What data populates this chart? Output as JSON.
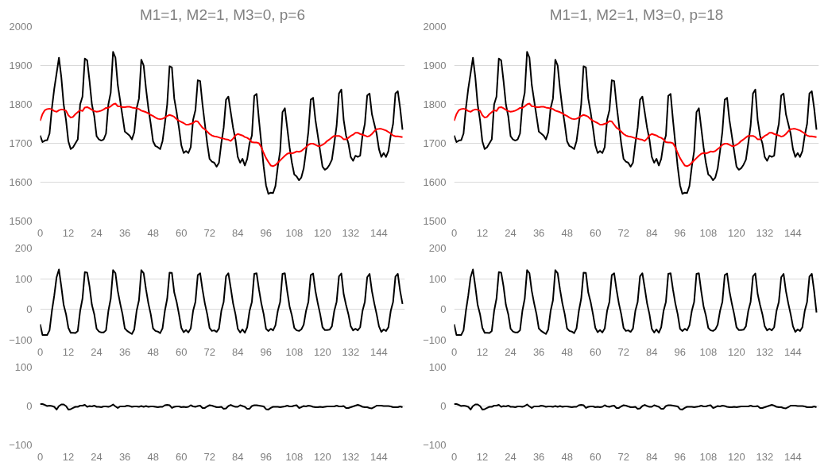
{
  "chart_data": [
    {
      "type": "line",
      "title": "M1=1, M2=1, M3=0, p=6",
      "xlim": [
        0,
        155
      ],
      "xticks": [
        0,
        12,
        24,
        36,
        48,
        60,
        72,
        84,
        96,
        108,
        120,
        132,
        144
      ],
      "ylim": [
        1500,
        2000
      ],
      "yticks": [
        1500,
        1600,
        1700,
        1800,
        1900,
        2000
      ],
      "grid": "y",
      "x": [
        0,
        1,
        2,
        3,
        4,
        5,
        6,
        7,
        8,
        9,
        10,
        11,
        12,
        13,
        14,
        15,
        16,
        17,
        18,
        19,
        20,
        21,
        22,
        23,
        24,
        25,
        26,
        27,
        28,
        29,
        30,
        31,
        32,
        33,
        34,
        35,
        36,
        37,
        38,
        39,
        40,
        41,
        42,
        43,
        44,
        45,
        46,
        47,
        48,
        49,
        50,
        51,
        52,
        53,
        54,
        55,
        56,
        57,
        58,
        59,
        60,
        61,
        62,
        63,
        64,
        65,
        66,
        67,
        68,
        69,
        70,
        71,
        72,
        73,
        74,
        75,
        76,
        77,
        78,
        79,
        80,
        81,
        82,
        83,
        84,
        85,
        86,
        87,
        88,
        89,
        90,
        91,
        92,
        93,
        94,
        95,
        96,
        97,
        98,
        99,
        100,
        101,
        102,
        103,
        104,
        105,
        106,
        107,
        108,
        109,
        110,
        111,
        112,
        113,
        114,
        115,
        116,
        117,
        118,
        119,
        120,
        121,
        122,
        123,
        124,
        125,
        126,
        127,
        128,
        129,
        130,
        131,
        132,
        133,
        134,
        135,
        136,
        137,
        138,
        139,
        140,
        141,
        142,
        143,
        144,
        145,
        146,
        147,
        148,
        149,
        150,
        151,
        152,
        153,
        154
      ],
      "series": [
        {
          "color": "#000000",
          "values": [
            1720,
            1703,
            1707,
            1708,
            1725,
            1790,
            1840,
            1880,
            1920,
            1870,
            1800,
            1760,
            1705,
            1685,
            1690,
            1700,
            1710,
            1800,
            1820,
            1918,
            1913,
            1860,
            1800,
            1770,
            1718,
            1710,
            1707,
            1710,
            1725,
            1800,
            1830,
            1935,
            1920,
            1850,
            1810,
            1770,
            1730,
            1725,
            1720,
            1710,
            1728,
            1790,
            1815,
            1915,
            1900,
            1840,
            1790,
            1750,
            1705,
            1693,
            1690,
            1685,
            1705,
            1750,
            1800,
            1898,
            1895,
            1815,
            1780,
            1740,
            1695,
            1675,
            1680,
            1675,
            1690,
            1760,
            1785,
            1862,
            1860,
            1800,
            1750,
            1700,
            1660,
            1653,
            1650,
            1640,
            1650,
            1700,
            1740,
            1812,
            1820,
            1780,
            1740,
            1710,
            1665,
            1650,
            1660,
            1643,
            1660,
            1700,
            1720,
            1822,
            1827,
            1760,
            1700,
            1640,
            1592,
            1570,
            1573,
            1572,
            1590,
            1640,
            1680,
            1780,
            1790,
            1740,
            1690,
            1650,
            1620,
            1615,
            1605,
            1612,
            1635,
            1680,
            1730,
            1812,
            1817,
            1760,
            1720,
            1680,
            1640,
            1632,
            1636,
            1645,
            1658,
            1700,
            1745,
            1828,
            1838,
            1760,
            1720,
            1700,
            1665,
            1655,
            1668,
            1665,
            1668,
            1720,
            1750,
            1823,
            1828,
            1775,
            1750,
            1725,
            1685,
            1665,
            1675,
            1665,
            1680,
            1720,
            1750,
            1828,
            1834,
            1790,
            1735
          ]
        },
        {
          "color": "#ff0000",
          "values": [
            1758,
            1775,
            1785,
            1788,
            1789,
            1787,
            1783,
            1781,
            1785,
            1787,
            1786,
            1784,
            1772,
            1766,
            1768,
            1775,
            1780,
            1785,
            1783,
            1792,
            1793,
            1790,
            1786,
            1783,
            1781,
            1782,
            1784,
            1787,
            1791,
            1791,
            1795,
            1800,
            1802,
            1795,
            1795,
            1793,
            1793,
            1794,
            1794,
            1792,
            1791,
            1790,
            1788,
            1784,
            1782,
            1780,
            1777,
            1773,
            1770,
            1766,
            1763,
            1762,
            1763,
            1766,
            1770,
            1773,
            1771,
            1768,
            1762,
            1758,
            1755,
            1752,
            1748,
            1748,
            1750,
            1752,
            1757,
            1756,
            1748,
            1740,
            1736,
            1730,
            1724,
            1720,
            1718,
            1717,
            1715,
            1713,
            1712,
            1710,
            1709,
            1706,
            1712,
            1720,
            1724,
            1722,
            1720,
            1716,
            1714,
            1710,
            1703,
            1702,
            1702,
            1700,
            1690,
            1675,
            1662,
            1652,
            1643,
            1641,
            1644,
            1650,
            1656,
            1662,
            1668,
            1673,
            1675,
            1674,
            1676,
            1679,
            1678,
            1680,
            1685,
            1690,
            1696,
            1699,
            1699,
            1696,
            1693,
            1693,
            1696,
            1700,
            1706,
            1710,
            1715,
            1719,
            1719,
            1719,
            1716,
            1710,
            1710,
            1714,
            1719,
            1722,
            1727,
            1727,
            1724,
            1722,
            1720,
            1717,
            1719,
            1724,
            1731,
            1736,
            1737,
            1737,
            1735,
            1733,
            1729,
            1725,
            1720,
            1718,
            1718,
            1717,
            1716
          ]
        }
      ]
    },
    {
      "type": "line",
      "title": "M1=1, M2=1, M3=0, p=18",
      "xlim": [
        0,
        155
      ],
      "xticks": [
        0,
        12,
        24,
        36,
        48,
        60,
        72,
        84,
        96,
        108,
        120,
        132,
        144
      ],
      "ylim": [
        1500,
        2000
      ],
      "yticks": [
        1500,
        1600,
        1700,
        1800,
        1900,
        2000
      ],
      "grid": "y",
      "x": [
        0,
        1,
        2,
        3,
        4,
        5,
        6,
        7,
        8,
        9,
        10,
        11,
        12,
        13,
        14,
        15,
        16,
        17,
        18,
        19,
        20,
        21,
        22,
        23,
        24,
        25,
        26,
        27,
        28,
        29,
        30,
        31,
        32,
        33,
        34,
        35,
        36,
        37,
        38,
        39,
        40,
        41,
        42,
        43,
        44,
        45,
        46,
        47,
        48,
        49,
        50,
        51,
        52,
        53,
        54,
        55,
        56,
        57,
        58,
        59,
        60,
        61,
        62,
        63,
        64,
        65,
        66,
        67,
        68,
        69,
        70,
        71,
        72,
        73,
        74,
        75,
        76,
        77,
        78,
        79,
        80,
        81,
        82,
        83,
        84,
        85,
        86,
        87,
        88,
        89,
        90,
        91,
        92,
        93,
        94,
        95,
        96,
        97,
        98,
        99,
        100,
        101,
        102,
        103,
        104,
        105,
        106,
        107,
        108,
        109,
        110,
        111,
        112,
        113,
        114,
        115,
        116,
        117,
        118,
        119,
        120,
        121,
        122,
        123,
        124,
        125,
        126,
        127,
        128,
        129,
        130,
        131,
        132,
        133,
        134,
        135,
        136,
        137,
        138,
        139,
        140,
        141,
        142,
        143,
        144,
        145,
        146,
        147,
        148,
        149,
        150,
        151,
        152,
        153,
        154
      ],
      "series": [
        {
          "color": "#000000",
          "values": [
            1720,
            1703,
            1707,
            1708,
            1725,
            1790,
            1840,
            1880,
            1920,
            1870,
            1800,
            1760,
            1705,
            1685,
            1690,
            1700,
            1710,
            1800,
            1820,
            1918,
            1913,
            1860,
            1800,
            1770,
            1718,
            1710,
            1707,
            1710,
            1725,
            1800,
            1830,
            1935,
            1920,
            1850,
            1810,
            1770,
            1730,
            1725,
            1720,
            1710,
            1728,
            1790,
            1815,
            1915,
            1900,
            1840,
            1790,
            1750,
            1705,
            1693,
            1690,
            1685,
            1705,
            1750,
            1800,
            1898,
            1895,
            1815,
            1780,
            1740,
            1695,
            1675,
            1680,
            1675,
            1690,
            1760,
            1785,
            1862,
            1860,
            1800,
            1750,
            1700,
            1660,
            1653,
            1650,
            1640,
            1650,
            1700,
            1740,
            1812,
            1820,
            1780,
            1740,
            1710,
            1665,
            1650,
            1660,
            1643,
            1660,
            1700,
            1720,
            1822,
            1827,
            1760,
            1700,
            1640,
            1592,
            1570,
            1573,
            1572,
            1590,
            1640,
            1680,
            1780,
            1790,
            1740,
            1690,
            1650,
            1620,
            1615,
            1605,
            1612,
            1635,
            1680,
            1730,
            1812,
            1817,
            1760,
            1720,
            1680,
            1640,
            1632,
            1636,
            1645,
            1658,
            1700,
            1745,
            1828,
            1838,
            1760,
            1720,
            1700,
            1665,
            1655,
            1668,
            1665,
            1668,
            1720,
            1750,
            1823,
            1828,
            1775,
            1750,
            1725,
            1685,
            1665,
            1675,
            1665,
            1680,
            1720,
            1750,
            1828,
            1834,
            1790,
            1735
          ]
        },
        {
          "color": "#ff0000",
          "values": [
            1758,
            1775,
            1785,
            1788,
            1789,
            1787,
            1783,
            1781,
            1785,
            1787,
            1786,
            1784,
            1772,
            1766,
            1768,
            1775,
            1780,
            1785,
            1783,
            1792,
            1793,
            1790,
            1786,
            1783,
            1781,
            1782,
            1784,
            1787,
            1791,
            1791,
            1795,
            1800,
            1802,
            1795,
            1795,
            1793,
            1793,
            1794,
            1794,
            1792,
            1791,
            1790,
            1788,
            1784,
            1782,
            1780,
            1777,
            1773,
            1770,
            1766,
            1763,
            1762,
            1763,
            1766,
            1770,
            1773,
            1771,
            1768,
            1762,
            1758,
            1755,
            1752,
            1748,
            1748,
            1750,
            1752,
            1757,
            1756,
            1748,
            1740,
            1736,
            1730,
            1724,
            1720,
            1718,
            1717,
            1715,
            1713,
            1712,
            1710,
            1709,
            1706,
            1712,
            1720,
            1724,
            1722,
            1720,
            1716,
            1714,
            1710,
            1703,
            1702,
            1702,
            1700,
            1690,
            1675,
            1662,
            1652,
            1643,
            1641,
            1644,
            1650,
            1656,
            1662,
            1668,
            1673,
            1675,
            1674,
            1676,
            1679,
            1678,
            1680,
            1685,
            1690,
            1696,
            1699,
            1699,
            1696,
            1693,
            1693,
            1696,
            1700,
            1706,
            1710,
            1715,
            1719,
            1719,
            1719,
            1716,
            1710,
            1710,
            1714,
            1719,
            1722,
            1727,
            1727,
            1724,
            1722,
            1720,
            1717,
            1719,
            1724,
            1731,
            1736,
            1737,
            1737,
            1735,
            1733,
            1729,
            1725,
            1720,
            1718,
            1718,
            1717,
            1716
          ]
        }
      ]
    },
    {
      "type": "line",
      "xlim": [
        0,
        155
      ],
      "xticks": [
        0,
        12,
        24,
        36,
        48,
        60,
        72,
        84,
        96,
        108,
        120,
        132,
        144
      ],
      "ylim": [
        -100,
        200
      ],
      "yticks": [
        -100,
        0,
        100,
        200
      ],
      "grid": "y",
      "x": [
        0,
        1,
        2,
        3,
        4,
        5,
        6,
        7,
        8,
        9,
        10,
        11,
        12,
        13,
        14,
        15,
        16,
        17,
        18,
        19,
        20,
        21,
        22,
        23,
        24,
        25,
        26,
        27,
        28,
        29,
        30,
        31,
        32,
        33,
        34,
        35,
        36,
        37,
        38,
        39,
        40,
        41,
        42,
        43,
        44,
        45,
        46,
        47,
        48,
        49,
        50,
        51,
        52,
        53,
        54,
        55,
        56,
        57,
        58,
        59,
        60,
        61,
        62,
        63,
        64,
        65,
        66,
        67,
        68,
        69,
        70,
        71,
        72,
        73,
        74,
        75,
        76,
        77,
        78,
        79,
        80,
        81,
        82,
        83,
        84,
        85,
        86,
        87,
        88,
        89,
        90,
        91,
        92,
        93,
        94,
        95,
        96,
        97,
        98,
        99,
        100,
        101,
        102,
        103,
        104,
        105,
        106,
        107,
        108,
        109,
        110,
        111,
        112,
        113,
        114,
        115,
        116,
        117,
        118,
        119,
        120,
        121,
        122,
        123,
        124,
        125,
        126,
        127,
        128,
        129,
        130,
        131,
        132,
        133,
        134,
        135,
        136,
        137,
        138,
        139,
        140,
        141,
        142,
        143,
        144,
        145,
        146,
        147,
        148,
        149,
        150,
        151,
        152,
        153,
        154
      ],
      "series": [
        {
          "color": "#000000",
          "values": [
            -48,
            -83,
            -83,
            -83,
            -68,
            -5,
            45,
            105,
            130,
            75,
            15,
            -15,
            -60,
            -76,
            -76,
            -77,
            -70,
            -5,
            35,
            122,
            120,
            75,
            15,
            -15,
            -63,
            -72,
            -75,
            -75,
            -68,
            -5,
            35,
            128,
            118,
            60,
            20,
            -15,
            -62,
            -70,
            -75,
            -80,
            -65,
            -5,
            30,
            128,
            118,
            65,
            20,
            -15,
            -62,
            -70,
            -72,
            -77,
            -62,
            -5,
            35,
            120,
            119,
            55,
            25,
            -15,
            -60,
            -74,
            -67,
            -75,
            -62,
            -5,
            25,
            112,
            118,
            65,
            20,
            -15,
            -60,
            -70,
            -68,
            -73,
            -62,
            -5,
            25,
            108,
            118,
            70,
            20,
            -15,
            -63,
            -75,
            -65,
            -76,
            -58,
            -5,
            25,
            116,
            118,
            65,
            20,
            -15,
            -63,
            -70,
            -63,
            -68,
            -52,
            -5,
            25,
            116,
            118,
            60,
            10,
            -20,
            -60,
            -68,
            -70,
            -65,
            -50,
            -5,
            25,
            112,
            117,
            60,
            20,
            -15,
            -58,
            -67,
            -67,
            -66,
            -55,
            -5,
            25,
            108,
            117,
            50,
            15,
            -15,
            -55,
            -68,
            -63,
            -68,
            -58,
            -5,
            25,
            105,
            116,
            60,
            20,
            -15,
            -55,
            -73,
            -65,
            -70,
            -58,
            -5,
            25,
            107,
            116,
            60,
            18
          ]
        }
      ]
    },
    {
      "type": "line",
      "xlim": [
        0,
        155
      ],
      "xticks": [
        0,
        12,
        24,
        36,
        48,
        60,
        72,
        84,
        96,
        108,
        120,
        132,
        144
      ],
      "ylim": [
        -100,
        200
      ],
      "yticks": [
        -100,
        0,
        100,
        200
      ],
      "grid": "y",
      "x": [
        0,
        1,
        2,
        3,
        4,
        5,
        6,
        7,
        8,
        9,
        10,
        11,
        12,
        13,
        14,
        15,
        16,
        17,
        18,
        19,
        20,
        21,
        22,
        23,
        24,
        25,
        26,
        27,
        28,
        29,
        30,
        31,
        32,
        33,
        34,
        35,
        36,
        37,
        38,
        39,
        40,
        41,
        42,
        43,
        44,
        45,
        46,
        47,
        48,
        49,
        50,
        51,
        52,
        53,
        54,
        55,
        56,
        57,
        58,
        59,
        60,
        61,
        62,
        63,
        64,
        65,
        66,
        67,
        68,
        69,
        70,
        71,
        72,
        73,
        74,
        75,
        76,
        77,
        78,
        79,
        80,
        81,
        82,
        83,
        84,
        85,
        86,
        87,
        88,
        89,
        90,
        91,
        92,
        93,
        94,
        95,
        96,
        97,
        98,
        99,
        100,
        101,
        102,
        103,
        104,
        105,
        106,
        107,
        108,
        109,
        110,
        111,
        112,
        113,
        114,
        115,
        116,
        117,
        118,
        119,
        120,
        121,
        122,
        123,
        124,
        125,
        126,
        127,
        128,
        129,
        130,
        131,
        132,
        133,
        134,
        135,
        136,
        137,
        138,
        139,
        140,
        141,
        142,
        143,
        144,
        145,
        146,
        147,
        148,
        149,
        150,
        151,
        152,
        153,
        154
      ],
      "series": [
        {
          "color": "#000000",
          "values": [
            -48,
            -83,
            -83,
            -83,
            -68,
            -5,
            45,
            105,
            130,
            75,
            15,
            -15,
            -60,
            -76,
            -76,
            -77,
            -70,
            -5,
            35,
            122,
            120,
            75,
            15,
            -15,
            -63,
            -72,
            -75,
            -75,
            -68,
            -5,
            35,
            128,
            118,
            60,
            20,
            -15,
            -62,
            -70,
            -75,
            -80,
            -65,
            -5,
            30,
            128,
            118,
            65,
            20,
            -15,
            -62,
            -70,
            -72,
            -77,
            -62,
            -5,
            35,
            120,
            119,
            55,
            25,
            -15,
            -60,
            -74,
            -67,
            -75,
            -62,
            -5,
            25,
            112,
            118,
            65,
            20,
            -15,
            -60,
            -70,
            -68,
            -73,
            -62,
            -5,
            25,
            108,
            118,
            70,
            20,
            -15,
            -63,
            -75,
            -65,
            -76,
            -58,
            -5,
            25,
            116,
            118,
            65,
            20,
            -15,
            -63,
            -70,
            -63,
            -68,
            -52,
            -5,
            25,
            116,
            118,
            60,
            10,
            -20,
            -60,
            -68,
            -70,
            -65,
            -50,
            -5,
            25,
            112,
            117,
            60,
            20,
            -15,
            -58,
            -67,
            -67,
            -66,
            -55,
            -5,
            25,
            108,
            117,
            50,
            15,
            -15,
            -55,
            -68,
            -63,
            -68,
            -58,
            -5,
            25,
            105,
            116,
            60,
            20,
            -15,
            -55,
            -73,
            -65,
            -70,
            -58,
            -5,
            25,
            107,
            116,
            60,
            -10
          ]
        }
      ]
    },
    {
      "type": "line",
      "xlim": [
        0,
        155
      ],
      "xticks": [
        0,
        12,
        24,
        36,
        48,
        60,
        72,
        84,
        96,
        108,
        120,
        132,
        144
      ],
      "ylim": [
        -100,
        100
      ],
      "yticks": [
        -100,
        0,
        100
      ],
      "grid": "y",
      "x": [
        0,
        1,
        2,
        3,
        4,
        5,
        6,
        7,
        8,
        9,
        10,
        11,
        12,
        13,
        14,
        15,
        16,
        17,
        18,
        19,
        20,
        21,
        22,
        23,
        24,
        25,
        26,
        27,
        28,
        29,
        30,
        31,
        32,
        33,
        34,
        35,
        36,
        37,
        38,
        39,
        40,
        41,
        42,
        43,
        44,
        45,
        46,
        47,
        48,
        49,
        50,
        51,
        52,
        53,
        54,
        55,
        56,
        57,
        58,
        59,
        60,
        61,
        62,
        63,
        64,
        65,
        66,
        67,
        68,
        69,
        70,
        71,
        72,
        73,
        74,
        75,
        76,
        77,
        78,
        79,
        80,
        81,
        82,
        83,
        84,
        85,
        86,
        87,
        88,
        89,
        90,
        91,
        92,
        93,
        94,
        95,
        96,
        97,
        98,
        99,
        100,
        101,
        102,
        103,
        104,
        105,
        106,
        107,
        108,
        109,
        110,
        111,
        112,
        113,
        114,
        115,
        116,
        117,
        118,
        119,
        120,
        121,
        122,
        123,
        124,
        125,
        126,
        127,
        128,
        129,
        130,
        131,
        132,
        133,
        134,
        135,
        136,
        137,
        138,
        139,
        140,
        141,
        142,
        143,
        144,
        145,
        146,
        147,
        148,
        149,
        150,
        151,
        152,
        153,
        154
      ],
      "series": [
        {
          "color": "#000000",
          "values": [
            5,
            5,
            3,
            0,
            1,
            0,
            -2,
            -9,
            0,
            4,
            4,
            0,
            -9,
            -8,
            -5,
            -2,
            -2,
            1,
            1,
            3,
            -2,
            0,
            -1,
            1,
            -2,
            -2,
            -3,
            -1,
            -1,
            -2,
            0,
            4,
            -1,
            -5,
            -1,
            -1,
            -1,
            1,
            0,
            -2,
            -1,
            -1,
            -2,
            0,
            -2,
            0,
            -2,
            -1,
            -1,
            -2,
            -3,
            -2,
            -2,
            2,
            3,
            2,
            -5,
            -2,
            -1,
            -1,
            -3,
            -2,
            -3,
            -2,
            2,
            -1,
            -2,
            0,
            1,
            -5,
            -5,
            -1,
            2,
            1,
            -1,
            -3,
            -3,
            -2,
            -7,
            -6,
            0,
            3,
            0,
            -2,
            -2,
            2,
            0,
            -2,
            -7,
            -7,
            0,
            2,
            2,
            1,
            0,
            -1,
            -8,
            -9,
            -5,
            -2,
            -2,
            -2,
            -3,
            -2,
            -1,
            1,
            -1,
            -1,
            1,
            2,
            -5,
            -3,
            0,
            -1,
            1,
            0,
            -2,
            -3,
            -3,
            -2,
            -3,
            -2,
            -1,
            -1,
            -1,
            -1,
            1,
            -1,
            -1,
            0,
            -5,
            -5,
            -3,
            -1,
            1,
            3,
            1,
            -2,
            -3,
            -3,
            -5,
            -6,
            -3,
            1,
            1,
            1,
            0,
            0,
            0,
            -1,
            -3,
            -3,
            -3,
            -1,
            -3
          ]
        }
      ]
    },
    {
      "type": "line",
      "xlim": [
        0,
        155
      ],
      "xticks": [
        0,
        12,
        24,
        36,
        48,
        60,
        72,
        84,
        96,
        108,
        120,
        132,
        144
      ],
      "ylim": [
        -100,
        100
      ],
      "yticks": [
        -100,
        0,
        100
      ],
      "grid": "y",
      "x": [
        0,
        1,
        2,
        3,
        4,
        5,
        6,
        7,
        8,
        9,
        10,
        11,
        12,
        13,
        14,
        15,
        16,
        17,
        18,
        19,
        20,
        21,
        22,
        23,
        24,
        25,
        26,
        27,
        28,
        29,
        30,
        31,
        32,
        33,
        34,
        35,
        36,
        37,
        38,
        39,
        40,
        41,
        42,
        43,
        44,
        45,
        46,
        47,
        48,
        49,
        50,
        51,
        52,
        53,
        54,
        55,
        56,
        57,
        58,
        59,
        60,
        61,
        62,
        63,
        64,
        65,
        66,
        67,
        68,
        69,
        70,
        71,
        72,
        73,
        74,
        75,
        76,
        77,
        78,
        79,
        80,
        81,
        82,
        83,
        84,
        85,
        86,
        87,
        88,
        89,
        90,
        91,
        92,
        93,
        94,
        95,
        96,
        97,
        98,
        99,
        100,
        101,
        102,
        103,
        104,
        105,
        106,
        107,
        108,
        109,
        110,
        111,
        112,
        113,
        114,
        115,
        116,
        117,
        118,
        119,
        120,
        121,
        122,
        123,
        124,
        125,
        126,
        127,
        128,
        129,
        130,
        131,
        132,
        133,
        134,
        135,
        136,
        137,
        138,
        139,
        140,
        141,
        142,
        143,
        144,
        145,
        146,
        147,
        148,
        149,
        150,
        151,
        152,
        153,
        154
      ],
      "series": [
        {
          "color": "#000000",
          "values": [
            5,
            5,
            3,
            0,
            1,
            0,
            -2,
            -9,
            0,
            4,
            4,
            0,
            -9,
            -8,
            -5,
            -2,
            -2,
            1,
            1,
            3,
            -2,
            0,
            -1,
            1,
            -2,
            -2,
            -3,
            -1,
            -1,
            -2,
            0,
            4,
            -1,
            -5,
            -1,
            -1,
            -1,
            1,
            0,
            -2,
            -1,
            -1,
            -2,
            0,
            -2,
            0,
            -2,
            -1,
            -1,
            -2,
            -3,
            -2,
            -2,
            2,
            3,
            2,
            -5,
            -2,
            -1,
            -1,
            -3,
            -2,
            -3,
            -2,
            2,
            -1,
            -2,
            0,
            1,
            -5,
            -5,
            -1,
            2,
            1,
            -1,
            -3,
            -3,
            -2,
            -7,
            -6,
            0,
            3,
            0,
            -2,
            -2,
            2,
            0,
            -2,
            -7,
            -7,
            0,
            2,
            2,
            1,
            0,
            -1,
            -8,
            -9,
            -5,
            -2,
            -2,
            -2,
            -3,
            -2,
            -1,
            1,
            -1,
            -1,
            1,
            2,
            -5,
            -3,
            0,
            -1,
            1,
            0,
            -2,
            -3,
            -3,
            -2,
            -3,
            -2,
            -1,
            -1,
            -1,
            -1,
            1,
            -1,
            -1,
            0,
            -5,
            -5,
            -3,
            -1,
            1,
            3,
            1,
            -2,
            -3,
            -3,
            -5,
            -6,
            -3,
            1,
            1,
            1,
            0,
            0,
            0,
            -1,
            -3,
            -3,
            -3,
            -1,
            -3
          ]
        }
      ]
    }
  ]
}
